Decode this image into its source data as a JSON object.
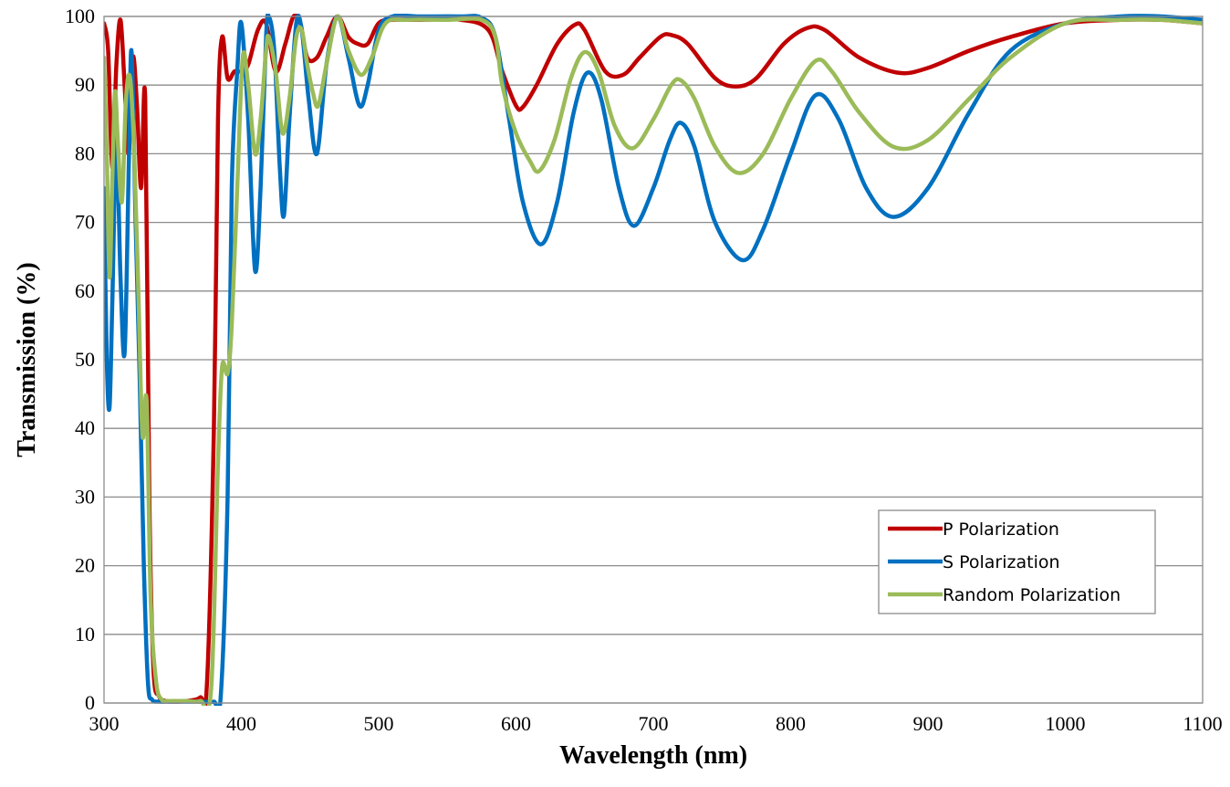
{
  "chart_data": {
    "type": "line",
    "xlabel": "Wavelength (nm)",
    "ylabel": "Transmission (%)",
    "xlim": [
      300,
      1100
    ],
    "ylim": [
      0,
      100
    ],
    "xticks": [
      300,
      400,
      500,
      600,
      700,
      800,
      900,
      1000,
      1100
    ],
    "yticks": [
      0,
      10,
      20,
      30,
      40,
      50,
      60,
      70,
      80,
      90,
      100
    ],
    "grid": "horizontal",
    "legend_position": "bottom-right",
    "series": [
      {
        "name": "P Polarization",
        "color": "#C00000",
        "x": [
          300,
          303,
          306,
          309,
          312,
          315,
          318,
          321,
          324,
          327,
          330,
          333,
          336,
          340,
          345,
          350,
          360,
          370,
          375,
          380,
          383,
          386,
          390,
          395,
          400,
          405,
          412,
          418,
          425,
          432,
          438,
          443,
          448,
          455,
          462,
          470,
          478,
          485,
          492,
          500,
          510,
          530,
          560,
          580,
          590,
          600,
          605,
          615,
          630,
          643,
          650,
          665,
          678,
          690,
          705,
          713,
          725,
          745,
          760,
          775,
          795,
          812,
          825,
          850,
          878,
          900,
          930,
          960,
          1000,
          1040,
          1070,
          1100
        ],
        "y": [
          99,
          95,
          78,
          93,
          99.5,
          90,
          80,
          94,
          87,
          75,
          88,
          30,
          5,
          1,
          0.3,
          0.2,
          0.3,
          0.8,
          3,
          40,
          85,
          97,
          91,
          92,
          92,
          93,
          98,
          99,
          92,
          96,
          100,
          99,
          94,
          94,
          97,
          100,
          97,
          96,
          96,
          99,
          99.5,
          99.5,
          99.5,
          98,
          92,
          87,
          86.8,
          90,
          96,
          98.8,
          98,
          92,
          91.5,
          94,
          97,
          97.3,
          96,
          91,
          89.8,
          91,
          96,
          98.3,
          98,
          94,
          91.8,
          92.5,
          95,
          97,
          99,
          99.5,
          99.5,
          99
        ]
      },
      {
        "name": "S Polarization",
        "color": "#0070C0",
        "x": [
          300,
          302,
          304,
          306,
          309,
          312,
          315,
          318,
          320,
          323,
          326,
          329,
          332,
          335,
          340,
          345,
          350,
          360,
          370,
          380,
          385,
          390,
          393,
          397,
          400,
          405,
          410,
          414,
          418,
          420,
          424,
          428,
          431,
          435,
          440,
          444,
          449,
          455,
          462,
          470,
          478,
          486,
          492,
          500,
          510,
          530,
          560,
          575,
          585,
          595,
          605,
          618,
          630,
          642,
          652,
          662,
          675,
          686,
          700,
          712,
          720,
          730,
          745,
          765,
          780,
          800,
          818,
          835,
          855,
          875,
          900,
          930,
          960,
          1000,
          1040,
          1070,
          1100
        ],
        "y": [
          75,
          50,
          43,
          58,
          82,
          62,
          51,
          78,
          95,
          70,
          47,
          20,
          3,
          0.5,
          0.2,
          0.2,
          0.2,
          0.2,
          0.2,
          0.2,
          1,
          30,
          75,
          92,
          99,
          85,
          63,
          75,
          97,
          100,
          95,
          78,
          71,
          85,
          99,
          98,
          88,
          80,
          93,
          100,
          94,
          87,
          90,
          98,
          100,
          100,
          100,
          99.8,
          97,
          85,
          73,
          66.8,
          73,
          86,
          91.8,
          88,
          75,
          69.5,
          75,
          82,
          84.5,
          81,
          70,
          64.5,
          69,
          80,
          88.5,
          85,
          75,
          70.8,
          75,
          86,
          95,
          99,
          100,
          100,
          99.5
        ]
      },
      {
        "name": "Random Polarization",
        "color": "#9BBB59",
        "x": [
          300,
          302,
          304,
          306,
          308,
          310,
          313,
          316,
          319,
          322,
          325,
          328,
          331,
          334,
          338,
          342,
          346,
          350,
          360,
          370,
          378,
          383,
          386,
          390,
          393,
          397,
          401,
          405,
          410,
          414,
          418,
          420,
          425,
          430,
          435,
          440,
          444,
          448,
          452,
          456,
          462,
          470,
          478,
          487,
          495,
          505,
          520,
          550,
          575,
          585,
          590,
          600,
          610,
          617,
          628,
          640,
          650,
          660,
          672,
          685,
          700,
          713,
          720,
          730,
          745,
          762,
          780,
          800,
          818,
          830,
          850,
          875,
          900,
          930,
          960,
          1000,
          1040,
          1070,
          1100
        ],
        "y": [
          94,
          80,
          62,
          76,
          89,
          82,
          73,
          88,
          91,
          80,
          60,
          39,
          44,
          15,
          3,
          0.5,
          0.3,
          0.3,
          0.3,
          0.3,
          2,
          35,
          49,
          48,
          55,
          75,
          94,
          90,
          80,
          85,
          95,
          97,
          92,
          83,
          88,
          97,
          98,
          93,
          89,
          87,
          93,
          100,
          95,
          91.5,
          94,
          99,
          99.5,
          99.5,
          99.5,
          97,
          90,
          83,
          79,
          77.5,
          82,
          91,
          94.8,
          92,
          84,
          80.8,
          85,
          90,
          90.7,
          88,
          81,
          77.2,
          80,
          88,
          93.5,
          92,
          86,
          81,
          82,
          88,
          94,
          99,
          99.5,
          99.5,
          99
        ]
      }
    ]
  }
}
